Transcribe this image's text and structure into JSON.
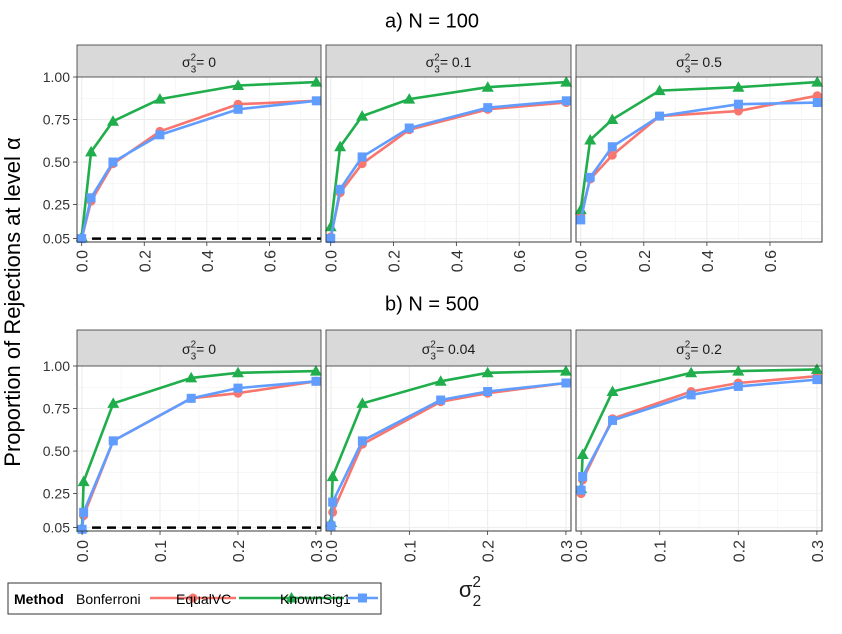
{
  "chart_data": [
    {
      "type": "line",
      "title": "a) N = 100",
      "ylabel": "Proportion of Rejections at level α",
      "reference_line": 0.05,
      "ylim": [
        0.03,
        1.0
      ],
      "yticks": [
        "0.05",
        "0.25",
        "0.50",
        "0.75",
        "1.00"
      ],
      "xticks": [
        "0.0",
        "0.2",
        "0.4",
        "0.6"
      ],
      "xlim": [
        -0.015,
        0.765
      ],
      "panels": [
        {
          "label_prefix": "σ",
          "label_sup": "2",
          "label_sub": "3",
          "label_value": "= 0",
          "show_reference": true,
          "x": [
            0,
            0.03,
            0.1,
            0.25,
            0.5,
            0.75
          ],
          "series": [
            {
              "name": "Bonferroni",
              "values": [
                0.05,
                0.27,
                0.49,
                0.68,
                0.84,
                0.86
              ]
            },
            {
              "name": "EqualVC",
              "values": [
                0.06,
                0.56,
                0.74,
                0.87,
                0.95,
                0.97
              ]
            },
            {
              "name": "KnownSig1",
              "values": [
                0.05,
                0.29,
                0.5,
                0.66,
                0.81,
                0.86
              ]
            }
          ]
        },
        {
          "label_prefix": "σ",
          "label_sup": "2",
          "label_sub": "3",
          "label_value": "= 0.1",
          "show_reference": false,
          "x": [
            0,
            0.03,
            0.1,
            0.25,
            0.5,
            0.75
          ],
          "series": [
            {
              "name": "Bonferroni",
              "values": [
                0.06,
                0.32,
                0.49,
                0.69,
                0.81,
                0.85
              ]
            },
            {
              "name": "EqualVC",
              "values": [
                0.12,
                0.59,
                0.77,
                0.87,
                0.94,
                0.97
              ]
            },
            {
              "name": "KnownSig1",
              "values": [
                0.05,
                0.34,
                0.53,
                0.7,
                0.82,
                0.86
              ]
            }
          ]
        },
        {
          "label_prefix": "σ",
          "label_sup": "2",
          "label_sub": "3",
          "label_value": "= 0.5",
          "show_reference": false,
          "x": [
            0,
            0.03,
            0.1,
            0.25,
            0.5,
            0.75
          ],
          "series": [
            {
              "name": "Bonferroni",
              "values": [
                0.19,
                0.4,
                0.54,
                0.77,
                0.8,
                0.89
              ]
            },
            {
              "name": "EqualVC",
              "values": [
                0.22,
                0.63,
                0.75,
                0.92,
                0.94,
                0.97
              ]
            },
            {
              "name": "KnownSig1",
              "values": [
                0.16,
                0.41,
                0.59,
                0.77,
                0.84,
                0.85
              ]
            }
          ]
        }
      ]
    },
    {
      "type": "line",
      "title": "b) N = 500",
      "reference_line": 0.05,
      "ylim": [
        0.03,
        1.0
      ],
      "yticks": [
        "0.05",
        "0.25",
        "0.50",
        "0.75",
        "1.00"
      ],
      "xticks": [
        "0.0",
        "0.1",
        "0.2",
        "0.3"
      ],
      "xlim": [
        -0.0065,
        0.3065
      ],
      "panels": [
        {
          "label_prefix": "σ",
          "label_sup": "2",
          "label_sub": "3",
          "label_value": "= 0",
          "show_reference": true,
          "x": [
            0,
            0.002,
            0.04,
            0.14,
            0.2,
            0.3
          ],
          "series": [
            {
              "name": "Bonferroni",
              "values": [
                0.04,
                0.12,
                0.56,
                0.81,
                0.84,
                0.91
              ]
            },
            {
              "name": "EqualVC",
              "values": [
                0.05,
                0.32,
                0.78,
                0.93,
                0.96,
                0.97
              ]
            },
            {
              "name": "KnownSig1",
              "values": [
                0.04,
                0.14,
                0.56,
                0.81,
                0.87,
                0.91
              ]
            }
          ]
        },
        {
          "label_prefix": "σ",
          "label_sup": "2",
          "label_sub": "3",
          "label_value": "= 0.04",
          "show_reference": false,
          "x": [
            0,
            0.002,
            0.04,
            0.14,
            0.2,
            0.3
          ],
          "series": [
            {
              "name": "Bonferroni",
              "values": [
                0.06,
                0.14,
                0.54,
                0.79,
                0.84,
                0.9
              ]
            },
            {
              "name": "EqualVC",
              "values": [
                0.08,
                0.35,
                0.78,
                0.91,
                0.96,
                0.97
              ]
            },
            {
              "name": "KnownSig1",
              "values": [
                0.06,
                0.2,
                0.56,
                0.8,
                0.85,
                0.9
              ]
            }
          ]
        },
        {
          "label_prefix": "σ",
          "label_sup": "2",
          "label_sub": "3",
          "label_value": "= 0.2",
          "show_reference": false,
          "x": [
            0,
            0.002,
            0.04,
            0.14,
            0.2,
            0.3
          ],
          "series": [
            {
              "name": "Bonferroni",
              "values": [
                0.25,
                0.33,
                0.69,
                0.85,
                0.9,
                0.94
              ]
            },
            {
              "name": "EqualVC",
              "values": [
                0.28,
                0.48,
                0.85,
                0.96,
                0.97,
                0.98
              ]
            },
            {
              "name": "KnownSig1",
              "values": [
                0.27,
                0.35,
                0.68,
                0.83,
                0.88,
                0.92
              ]
            }
          ]
        }
      ]
    }
  ],
  "shared": {
    "ylabel": "Proportion of Rejections at level  α",
    "xlabel_base": "σ",
    "xlabel_sup": "2",
    "xlabel_sub": "2"
  },
  "legend": {
    "title": "Method",
    "items": [
      "Bonferroni",
      "EqualVC",
      "KnownSig1"
    ]
  },
  "colors": {
    "Bonferroni": "#F8766D",
    "EqualVC": "#1FAE4B",
    "KnownSig1": "#619CFF",
    "strip": "#d9d9d9",
    "grid": "#ebebeb"
  },
  "markers": {
    "Bonferroni": "circle",
    "EqualVC": "triangle",
    "KnownSig1": "square"
  }
}
